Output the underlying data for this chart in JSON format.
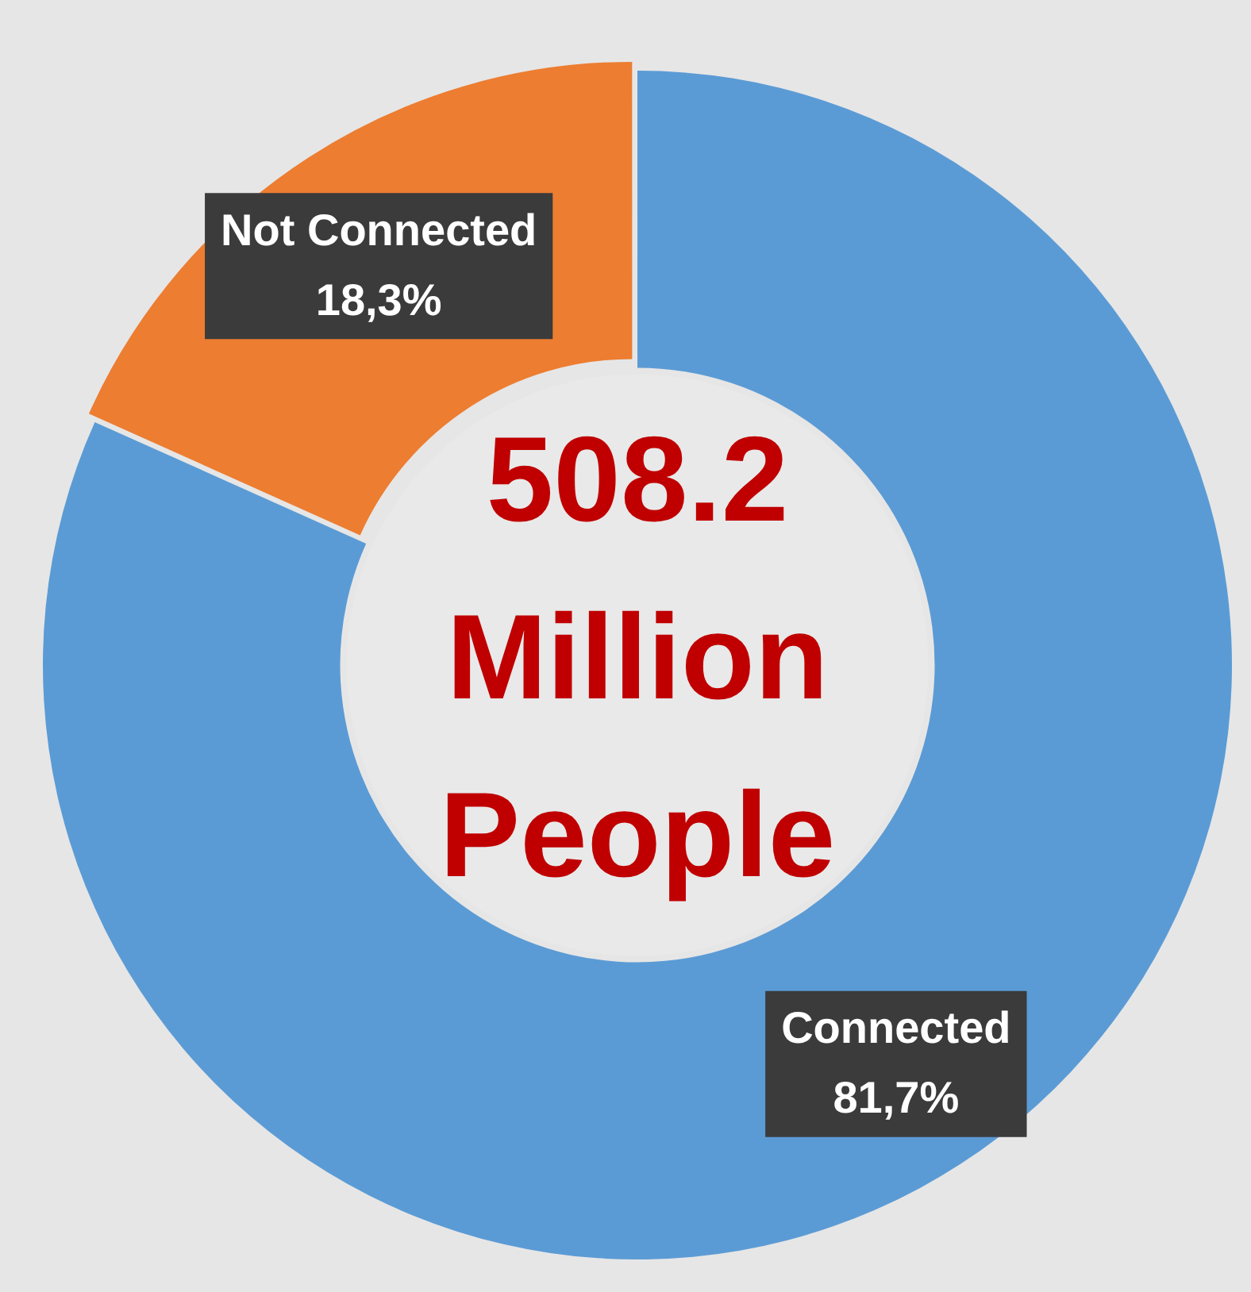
{
  "chart_data": {
    "type": "donut",
    "categories": [
      "Connected",
      "Not Connected"
    ],
    "values": [
      81.7,
      18.3
    ],
    "value_labels": [
      "81,7%",
      "18,3%"
    ],
    "colors": [
      "#5b9bd5",
      "#ed7d31"
    ],
    "annotations": [
      "508.2 Million People"
    ],
    "legend": false
  }
}
